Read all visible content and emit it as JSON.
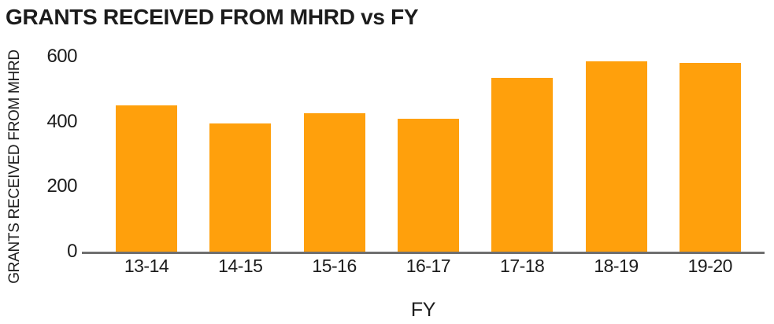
{
  "chart_data": {
    "type": "bar",
    "title": "GRANTS RECEIVED FROM MHRD vs FY",
    "xlabel": "FY",
    "ylabel": "GRANTS RECEIVED FROM MHRD",
    "categories": [
      "13-14",
      "14-15",
      "15-16",
      "16-17",
      "17-18",
      "18-19",
      "19-20"
    ],
    "values": [
      450,
      395,
      425,
      410,
      535,
      585,
      580
    ],
    "ylim": [
      0,
      600
    ],
    "yticks": [
      0,
      200,
      400,
      600
    ],
    "grid": false,
    "legend_position": "none",
    "bar_color": "#FFA00C"
  },
  "colors": {
    "bar": "#FFA00C",
    "axis_line": "#6F6F6F",
    "text": "#1C1C1C",
    "background": "#FFFFFF"
  }
}
